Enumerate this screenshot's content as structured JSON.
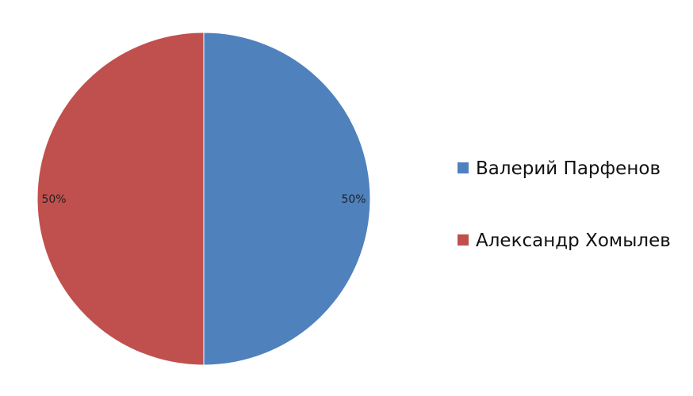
{
  "chart_data": {
    "type": "pie",
    "title": "",
    "categories": [
      "Валерий Парфенов",
      "Александр Хомылев"
    ],
    "values": [
      50,
      50
    ],
    "data_labels": [
      "50%",
      "50%"
    ],
    "colors": [
      "#4f81bd",
      "#c0504d"
    ],
    "start_angle_deg": -90,
    "direction": "clockwise",
    "legend": {
      "placement": "right",
      "entries": [
        "Валерий Парфенов",
        "Александр Хомылев"
      ]
    }
  }
}
